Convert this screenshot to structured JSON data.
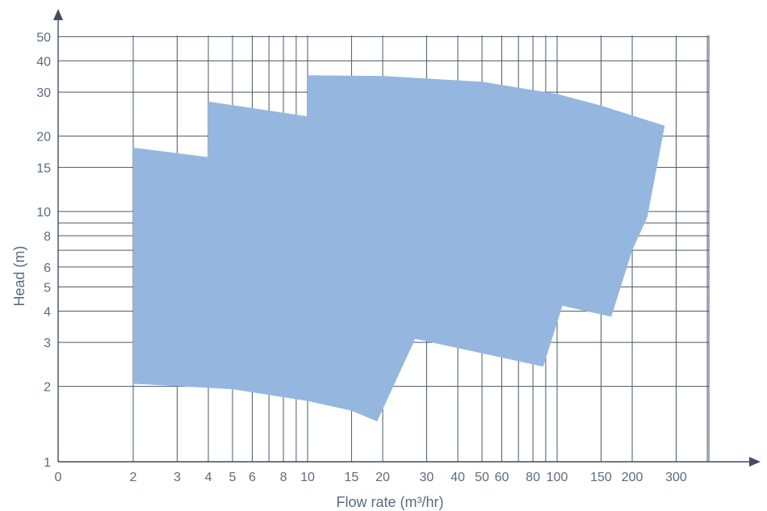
{
  "chart_data": {
    "type": "area",
    "title": "",
    "xlabel": "Flow rate (m³/hr)",
    "ylabel": "Head (m)",
    "x_scale": "log",
    "y_scale": "log",
    "grid": true,
    "legend": "none",
    "colors": {
      "area": "#95b7df",
      "grid": "#4a5868",
      "text": "#5b6b7e"
    },
    "x_tick_labels": [
      "0",
      "2",
      "3",
      "4",
      "5",
      "6",
      "8",
      "10",
      "15",
      "20",
      "30",
      "40",
      "50",
      "60",
      "80",
      "100",
      "150",
      "200",
      "300"
    ],
    "x_gridlines": [
      2,
      3,
      4,
      5,
      6,
      7,
      8,
      9,
      10,
      15,
      20,
      30,
      40,
      50,
      60,
      70,
      80,
      90,
      100,
      150,
      200,
      300,
      400
    ],
    "y_tick_labels": [
      "1",
      "2",
      "3",
      "4",
      "5",
      "6",
      "8",
      "10",
      "15",
      "20",
      "30",
      "40",
      "50"
    ],
    "y_gridlines": [
      1,
      2,
      3,
      4,
      5,
      6,
      7,
      8,
      9,
      10,
      15,
      20,
      30,
      40,
      50
    ],
    "xlim": [
      1,
      450
    ],
    "ylim": [
      1,
      60
    ],
    "series": [
      {
        "values": [
          [
            2,
            18.0
          ],
          [
            4,
            16.5
          ],
          [
            4,
            27.5
          ],
          [
            10,
            24.0
          ],
          [
            10,
            35.0
          ],
          [
            20,
            34.8
          ],
          [
            50,
            33.0
          ],
          [
            100,
            29.5
          ],
          [
            150,
            26.5
          ],
          [
            270,
            22.0
          ],
          [
            230,
            9.5
          ],
          [
            200,
            7.0
          ],
          [
            165,
            3.8
          ],
          [
            105,
            4.2
          ],
          [
            88,
            2.4
          ],
          [
            27,
            3.1
          ],
          [
            19,
            1.45
          ],
          [
            15,
            1.6
          ],
          [
            10,
            1.75
          ],
          [
            5,
            1.95
          ],
          [
            2,
            2.05
          ]
        ]
      }
    ]
  }
}
